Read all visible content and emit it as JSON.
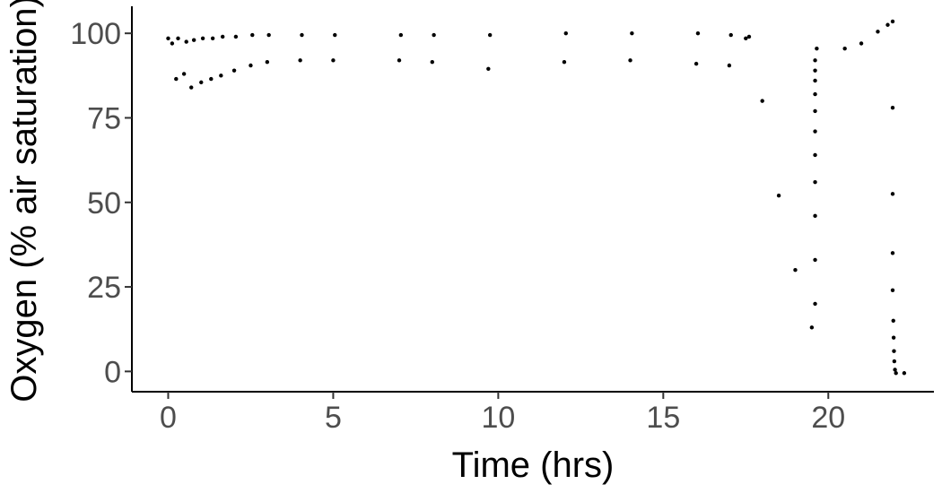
{
  "chart_data": {
    "type": "scatter",
    "title": "",
    "xlabel": "Time (hrs)",
    "ylabel": "Oxygen (% air saturation)",
    "xlim": [
      -1.1,
      23.2
    ],
    "ylim": [
      -6,
      108
    ],
    "x_ticks": [
      0,
      5,
      10,
      15,
      20
    ],
    "x_tick_labels": [
      "0",
      "5",
      "10",
      "15",
      "20"
    ],
    "y_ticks": [
      0,
      25,
      50,
      75,
      100
    ],
    "y_tick_labels": [
      "0",
      "25",
      "50",
      "75",
      "100"
    ],
    "grid": false,
    "legend": "none",
    "point_color": "#000000",
    "series": [
      {
        "description_points": [
          {
            "x": 0.0,
            "y": 98.5
          },
          {
            "x": 0.12,
            "y": 97.0
          },
          {
            "x": 0.24,
            "y": 86.5
          },
          {
            "x": 0.3,
            "y": 98.5
          },
          {
            "x": 0.48,
            "y": 88.0
          },
          {
            "x": 0.55,
            "y": 97.5
          },
          {
            "x": 0.7,
            "y": 84.0
          },
          {
            "x": 0.78,
            "y": 98.0
          },
          {
            "x": 1.0,
            "y": 85.5
          },
          {
            "x": 1.05,
            "y": 98.5
          },
          {
            "x": 1.3,
            "y": 86.5
          },
          {
            "x": 1.35,
            "y": 98.5
          },
          {
            "x": 1.6,
            "y": 87.5
          },
          {
            "x": 1.65,
            "y": 99.0
          },
          {
            "x": 2.0,
            "y": 89.0
          },
          {
            "x": 2.05,
            "y": 99.0
          },
          {
            "x": 2.5,
            "y": 90.5
          },
          {
            "x": 2.55,
            "y": 99.5
          },
          {
            "x": 3.0,
            "y": 91.5
          },
          {
            "x": 3.05,
            "y": 99.5
          },
          {
            "x": 4.0,
            "y": 92.0
          },
          {
            "x": 4.05,
            "y": 99.5
          },
          {
            "x": 5.0,
            "y": 92.0
          },
          {
            "x": 5.05,
            "y": 99.5
          },
          {
            "x": 7.0,
            "y": 92.0
          },
          {
            "x": 7.05,
            "y": 99.5
          },
          {
            "x": 8.0,
            "y": 91.5
          },
          {
            "x": 8.05,
            "y": 99.5
          },
          {
            "x": 9.7,
            "y": 89.5
          },
          {
            "x": 9.75,
            "y": 99.5
          },
          {
            "x": 12.0,
            "y": 91.5
          },
          {
            "x": 12.05,
            "y": 100.0
          },
          {
            "x": 14.0,
            "y": 92.0
          },
          {
            "x": 14.05,
            "y": 100.0
          },
          {
            "x": 16.0,
            "y": 91.0
          },
          {
            "x": 16.05,
            "y": 100.0
          },
          {
            "x": 17.0,
            "y": 90.5
          },
          {
            "x": 17.05,
            "y": 99.5
          },
          {
            "x": 17.5,
            "y": 98.5
          },
          {
            "x": 17.6,
            "y": 99.0
          },
          {
            "x": 18.0,
            "y": 80.0
          },
          {
            "x": 18.5,
            "y": 52.0
          },
          {
            "x": 19.0,
            "y": 30.0
          },
          {
            "x": 19.5,
            "y": 13.0
          },
          {
            "x": 19.6,
            "y": 20.0
          },
          {
            "x": 19.6,
            "y": 33.0
          },
          {
            "x": 19.6,
            "y": 46.0
          },
          {
            "x": 19.6,
            "y": 56.0
          },
          {
            "x": 19.6,
            "y": 64.0
          },
          {
            "x": 19.6,
            "y": 71.0
          },
          {
            "x": 19.6,
            "y": 77.0
          },
          {
            "x": 19.6,
            "y": 82.0
          },
          {
            "x": 19.6,
            "y": 86.0
          },
          {
            "x": 19.6,
            "y": 89.0
          },
          {
            "x": 19.6,
            "y": 92.0
          },
          {
            "x": 19.65,
            "y": 95.5
          },
          {
            "x": 20.5,
            "y": 95.5
          },
          {
            "x": 21.0,
            "y": 97.0
          },
          {
            "x": 21.5,
            "y": 100.5
          },
          {
            "x": 21.8,
            "y": 102.5
          },
          {
            "x": 21.95,
            "y": 103.5
          },
          {
            "x": 21.95,
            "y": 78.0
          },
          {
            "x": 21.95,
            "y": 52.5
          },
          {
            "x": 21.95,
            "y": 35.0
          },
          {
            "x": 21.95,
            "y": 24.0
          },
          {
            "x": 21.97,
            "y": 15.0
          },
          {
            "x": 21.98,
            "y": 10.0
          },
          {
            "x": 21.99,
            "y": 6.0
          },
          {
            "x": 22.0,
            "y": 3.0
          },
          {
            "x": 22.02,
            "y": 0.5
          },
          {
            "x": 22.05,
            "y": -0.5
          },
          {
            "x": 22.3,
            "y": -0.5
          }
        ]
      }
    ]
  }
}
